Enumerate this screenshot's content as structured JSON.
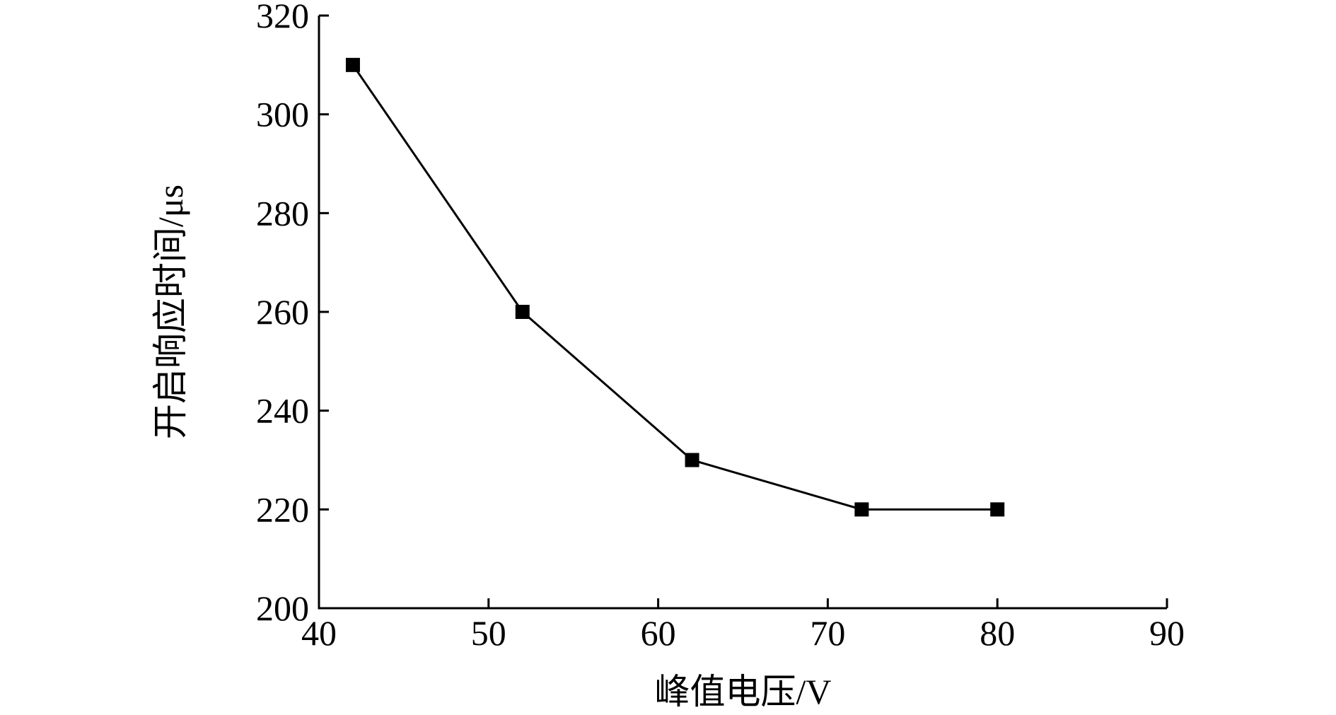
{
  "chart_data": {
    "type": "line",
    "title": "",
    "xlabel": "峰值电压/V",
    "ylabel": "开启响应时间/μs",
    "xlim": [
      40,
      90
    ],
    "ylim": [
      200,
      320
    ],
    "xticks": [
      40,
      50,
      60,
      70,
      80,
      90
    ],
    "yticks": [
      200,
      220,
      240,
      260,
      280,
      300,
      320
    ],
    "grid": false,
    "legend": "none",
    "series": [
      {
        "marker": "square",
        "color": "#000000",
        "x": [
          42,
          52,
          62,
          72,
          80
        ],
        "y": [
          310,
          260,
          230,
          220,
          220
        ]
      }
    ]
  }
}
